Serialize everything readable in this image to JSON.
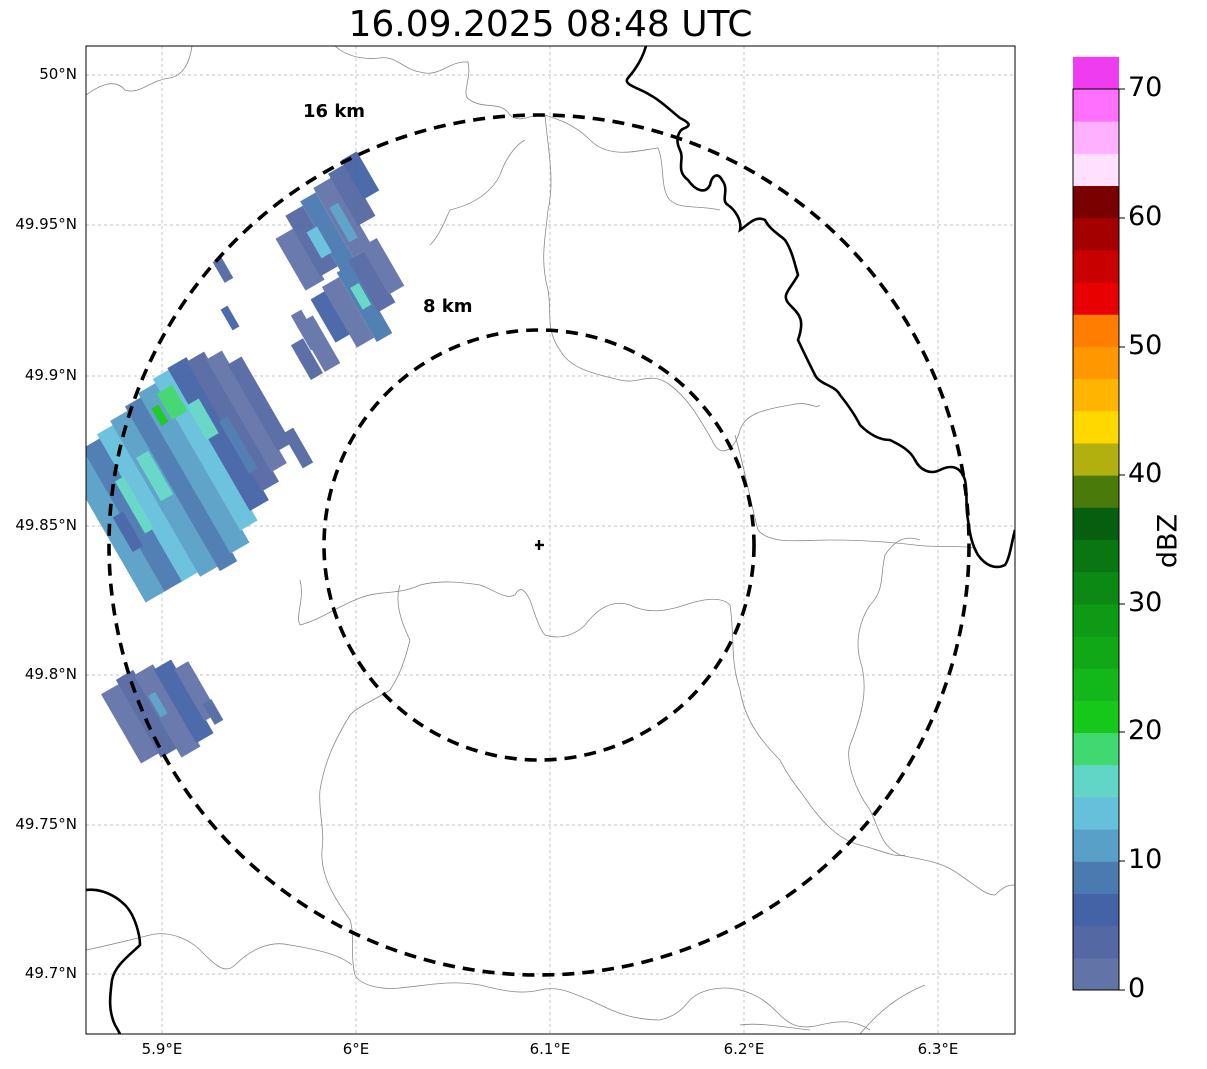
{
  "title": "16.09.2025 08:48 UTC",
  "map": {
    "lat_ticks": [
      "50°N",
      "49.95°N",
      "49.9°N",
      "49.85°N",
      "49.8°N",
      "49.75°N",
      "49.7°N"
    ],
    "lon_ticks": [
      "5.9°E",
      "6°E",
      "6.1°E",
      "6.2°E",
      "6.3°E"
    ],
    "extent": {
      "lon_min": 5.86,
      "lon_max": 6.34,
      "lat_min": 49.68,
      "lat_max": 50.01
    },
    "radar_center": {
      "lon": 6.094,
      "lat": 49.843
    },
    "range_rings": [
      {
        "label": "8 km",
        "radius_km": 8
      },
      {
        "label": "16 km",
        "radius_km": 16
      }
    ],
    "echo_color": "#5a73a8",
    "max_echo_color": "#3ed66e"
  },
  "colorbar": {
    "label": "dBZ",
    "ticks": [
      "0",
      "10",
      "20",
      "30",
      "40",
      "50",
      "60",
      "70"
    ],
    "colors": [
      "#6273a8",
      "#5468a3",
      "#4462a6",
      "#4a7ab0",
      "#58a0c8",
      "#66c0dc",
      "#62d6c6",
      "#40d870",
      "#16c81a",
      "#12b81a",
      "#10a816",
      "#0e9a14",
      "#0c8814",
      "#0a7612",
      "#075e0e",
      "#4a7a0a",
      "#b0b00e",
      "#ffd800",
      "#ffb400",
      "#ff9800",
      "#ff7e00",
      "#e80000",
      "#c80000",
      "#a40000",
      "#7a0000",
      "#ffe0ff",
      "#ffb0ff",
      "#ff70ff",
      "#f03cf0"
    ]
  }
}
